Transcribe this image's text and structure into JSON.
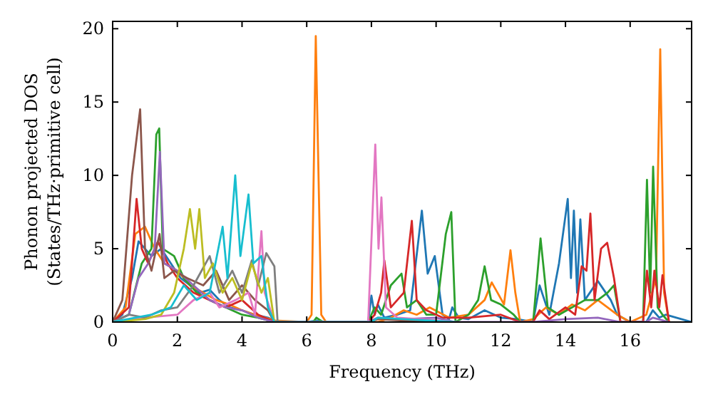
{
  "chart_data": {
    "type": "line",
    "xlabel": "Frequency (THz)",
    "ylabel": "Phonon projected DOS\n(States/THz·primitive cell)",
    "xlim": [
      0,
      17.9
    ],
    "ylim": [
      0,
      20.5
    ],
    "xticks": [
      0,
      2,
      4,
      6,
      8,
      10,
      12,
      14,
      16
    ],
    "yticks": [
      0,
      5,
      10,
      15,
      20
    ],
    "grid": false,
    "series": [
      {
        "color": "#1f77b4",
        "x": [
          0,
          0.3,
          0.6,
          0.8,
          1.0,
          1.2,
          1.5,
          1.8,
          2.1,
          2.4,
          2.7,
          3.0,
          3.3,
          3.6,
          4.0,
          4.4,
          4.8,
          5.0,
          5.2,
          6.0,
          6.3,
          6.6,
          7.9,
          8.0,
          8.1,
          8.2,
          8.4,
          8.8,
          9.2,
          9.56,
          9.74,
          9.96,
          10.2,
          10.4,
          10.5,
          10.7,
          11.0,
          11.5,
          12.0,
          12.5,
          13.0,
          13.2,
          13.5,
          13.8,
          14.07,
          14.17,
          14.26,
          14.36,
          14.46,
          14.6,
          15.0,
          15.4,
          15.6,
          16.0,
          16.5,
          16.7,
          16.9,
          17.1,
          17.9
        ],
        "values": [
          0,
          0.5,
          3,
          5.5,
          5,
          4.5,
          5,
          4,
          3,
          2.5,
          2,
          2.2,
          1.5,
          1,
          0.8,
          0.5,
          0.3,
          0.1,
          0,
          0,
          0.1,
          0,
          0,
          1.8,
          0.5,
          1.2,
          0.3,
          0.5,
          0.8,
          7.6,
          3.3,
          4.5,
          0.5,
          0.2,
          1,
          0.3,
          0.2,
          0.8,
          0.3,
          0.2,
          0,
          2.5,
          0.5,
          4,
          8.4,
          3,
          7.6,
          2,
          7,
          1.5,
          2.8,
          1.5,
          0.5,
          0,
          0,
          0.8,
          0.3,
          0.5,
          0
        ]
      },
      {
        "color": "#ff7f0e",
        "x": [
          0,
          0.4,
          0.7,
          1.0,
          1.3,
          1.6,
          2.0,
          2.4,
          2.8,
          3.2,
          3.6,
          4.0,
          4.4,
          5.0,
          6.0,
          6.15,
          6.28,
          6.45,
          6.6,
          7.9,
          8.2,
          8.6,
          9.0,
          9.4,
          9.8,
          10.4,
          11.0,
          11.5,
          11.72,
          11.9,
          12.1,
          12.3,
          12.45,
          12.6,
          13.0,
          13.4,
          13.8,
          14.2,
          14.6,
          15.0,
          15.6,
          16.0,
          16.5,
          16.8,
          16.93,
          17.05,
          17.2
        ],
        "values": [
          0,
          1,
          6,
          6.5,
          5,
          4,
          3.5,
          2.5,
          2,
          1.5,
          1.2,
          0.8,
          0.5,
          0.1,
          0,
          0.5,
          19.5,
          0.5,
          0,
          0,
          0,
          0.3,
          0.8,
          0.5,
          1,
          0.3,
          0.5,
          1.5,
          2.7,
          2,
          1.2,
          4.9,
          2,
          0,
          0.2,
          1,
          0.5,
          1.2,
          0.8,
          1.5,
          0.5,
          0,
          0.5,
          3,
          18.6,
          2,
          0
        ]
      },
      {
        "color": "#2ca02c",
        "x": [
          0,
          0.5,
          0.9,
          1.2,
          1.35,
          1.44,
          1.55,
          1.9,
          2.2,
          2.6,
          3.0,
          3.5,
          4.0,
          4.5,
          5.0,
          6.2,
          6.3,
          6.5,
          7.9,
          8.1,
          8.3,
          8.6,
          8.93,
          9.1,
          9.4,
          9.7,
          10.0,
          10.3,
          10.47,
          10.6,
          11.0,
          11.3,
          11.5,
          11.7,
          12.0,
          12.4,
          12.6,
          13.0,
          13.23,
          13.45,
          13.8,
          14.2,
          14.6,
          15.0,
          15.3,
          15.5,
          15.7,
          16.4,
          16.52,
          16.62,
          16.71,
          16.85,
          17.0,
          17.2
        ],
        "values": [
          0,
          0.5,
          4,
          5,
          12.8,
          13.2,
          5,
          4.5,
          3,
          2,
          1.5,
          1,
          0.5,
          0.3,
          0,
          0,
          0.3,
          0,
          0,
          1,
          0.5,
          2.5,
          3.3,
          1,
          1.5,
          0.5,
          0.5,
          6,
          7.5,
          0,
          0.5,
          1.5,
          3.8,
          1.5,
          1.2,
          0.5,
          0,
          0,
          5.7,
          1,
          0.5,
          1,
          1.5,
          1.5,
          2,
          2.5,
          0,
          0,
          9.7,
          2,
          10.6,
          1,
          0.5,
          0
        ]
      },
      {
        "color": "#d62728",
        "x": [
          0,
          0.5,
          0.74,
          0.9,
          1.1,
          1.4,
          1.7,
          2.0,
          2.5,
          3.0,
          3.5,
          4.0,
          4.5,
          5.0,
          7.9,
          8.1,
          8.3,
          8.4,
          8.6,
          9.0,
          9.25,
          9.4,
          9.7,
          10.2,
          11.0,
          12.0,
          12.6,
          13.0,
          13.2,
          13.5,
          14.0,
          14.3,
          14.5,
          14.65,
          14.77,
          14.9,
          15.1,
          15.29,
          15.5,
          15.7,
          16.4,
          16.52,
          16.65,
          16.75,
          16.9,
          17.0,
          17.2
        ],
        "values": [
          0,
          1,
          8.4,
          5,
          4,
          5.5,
          4,
          3,
          2,
          1.5,
          1,
          1.5,
          0.5,
          0,
          0,
          0.5,
          2,
          4.2,
          1,
          2,
          6.9,
          1.5,
          0.8,
          0.3,
          0.3,
          0.5,
          0,
          0,
          0.8,
          0.2,
          1,
          0.5,
          3.8,
          3.5,
          7.4,
          1.5,
          5,
          5.4,
          3,
          0,
          0,
          3.5,
          1,
          3.5,
          1,
          3.2,
          0
        ]
      },
      {
        "color": "#9467bd",
        "x": [
          0,
          0.5,
          0.8,
          1.1,
          1.3,
          1.46,
          1.6,
          2.0,
          2.5,
          3.0,
          3.5,
          4.0,
          4.5,
          5.0,
          7.9,
          8.2,
          9.0,
          10.0,
          10.6,
          13.0,
          14.0,
          15.0,
          15.7,
          16.5,
          16.7,
          17.2
        ],
        "values": [
          0,
          0.5,
          3,
          4,
          5,
          11.6,
          4,
          3.5,
          2.5,
          1.5,
          1,
          0.8,
          0.3,
          0,
          0,
          0.3,
          0.2,
          0.3,
          0,
          0,
          0.2,
          0.3,
          0,
          0,
          0.3,
          0
        ]
      },
      {
        "color": "#8c564b",
        "x": [
          0,
          0.3,
          0.6,
          0.85,
          1.0,
          1.2,
          1.45,
          1.6,
          1.9,
          2.3,
          2.8,
          3.2,
          3.6,
          4.0,
          4.4,
          4.8,
          5.0,
          7.9,
          8.2,
          9.0,
          10.6
        ],
        "values": [
          0,
          1.5,
          10,
          14.5,
          5,
          3.5,
          6,
          3,
          3.5,
          3,
          2.5,
          3.5,
          1.5,
          2.5,
          1.5,
          0.8,
          0,
          0,
          0.2,
          0.1,
          0
        ]
      },
      {
        "color": "#e377c2",
        "x": [
          0,
          1.0,
          2.0,
          2.5,
          3.0,
          3.3,
          3.8,
          4.2,
          4.4,
          4.6,
          4.7,
          5.0,
          7.9,
          8.12,
          8.22,
          8.31,
          8.45,
          8.8,
          9.5,
          10.6
        ],
        "values": [
          0,
          0.3,
          0.5,
          1.5,
          2,
          1,
          1.5,
          2,
          0.5,
          6.2,
          2,
          0,
          0,
          12.1,
          5,
          8.5,
          1,
          0.3,
          0.2,
          0
        ]
      },
      {
        "color": "#7f7f7f",
        "x": [
          0,
          0.5,
          1.0,
          1.5,
          2.0,
          2.5,
          3.0,
          3.3,
          3.7,
          4.0,
          4.3,
          4.5,
          4.75,
          5.0,
          5.1
        ],
        "values": [
          0,
          0.5,
          0.3,
          0.8,
          1,
          2.5,
          4.5,
          2,
          3.5,
          2,
          4.2,
          2.5,
          4.7,
          3.8,
          0
        ]
      },
      {
        "color": "#bcbd22",
        "x": [
          0,
          1.0,
          1.5,
          1.9,
          2.2,
          2.39,
          2.55,
          2.68,
          2.85,
          3.1,
          3.4,
          3.7,
          4.0,
          4.3,
          4.6,
          4.8,
          5.0
        ],
        "values": [
          0,
          0.2,
          0.5,
          2,
          5,
          7.7,
          5,
          7.7,
          3,
          4,
          2,
          3,
          1.5,
          4,
          2,
          3,
          0
        ]
      },
      {
        "color": "#17becf",
        "x": [
          0,
          0.7,
          1.2,
          1.8,
          2.2,
          2.6,
          3.0,
          3.4,
          3.55,
          3.79,
          3.95,
          4.2,
          4.35,
          4.6,
          4.8,
          5.0,
          8.0,
          8.2,
          9.0,
          10.6
        ],
        "values": [
          0,
          0.3,
          0.5,
          1,
          2.5,
          1.5,
          2,
          6.5,
          3,
          10,
          4.5,
          8.7,
          4,
          4.5,
          1,
          0,
          0,
          0.3,
          0.2,
          0
        ]
      }
    ]
  }
}
